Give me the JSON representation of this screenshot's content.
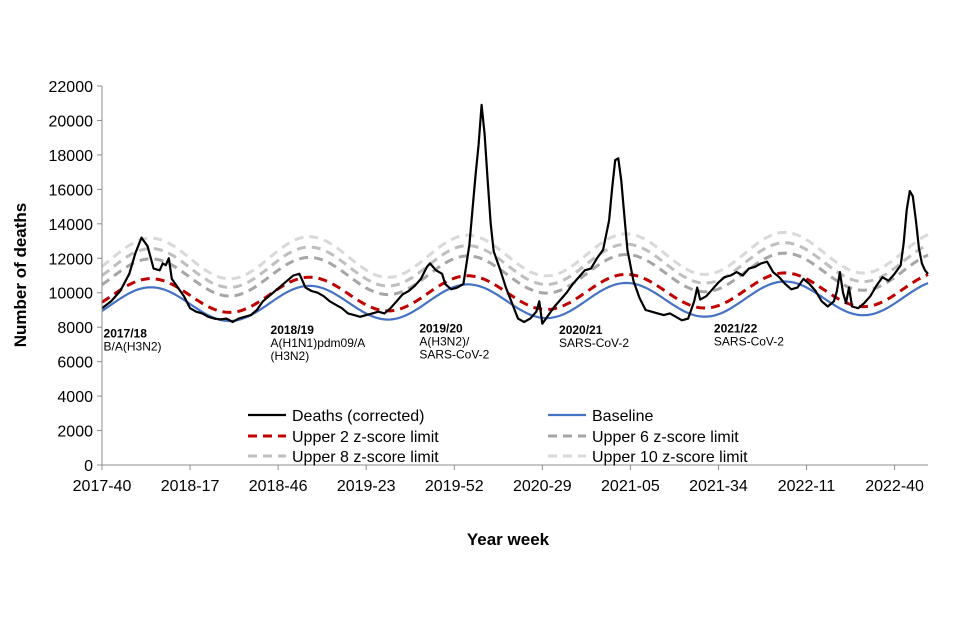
{
  "chart_data": {
    "type": "line",
    "xlabel": "Year week",
    "ylabel": "Number of deaths",
    "ylim": [
      0,
      22000
    ],
    "yticks": [
      0,
      2000,
      4000,
      6000,
      8000,
      10000,
      12000,
      14000,
      16000,
      18000,
      20000,
      22000
    ],
    "xlim": [
      0,
      272
    ],
    "xticks": [
      {
        "label": "2017-40",
        "week": 0
      },
      {
        "label": "2018-17",
        "week": 29
      },
      {
        "label": "2018-46",
        "week": 58
      },
      {
        "label": "2019-23",
        "week": 87
      },
      {
        "label": "2019-52",
        "week": 116
      },
      {
        "label": "2020-29",
        "week": 145
      },
      {
        "label": "2021-05",
        "week": 174
      },
      {
        "label": "2021-34",
        "week": 203
      },
      {
        "label": "2022-11",
        "week": 232
      },
      {
        "label": "2022-40",
        "week": 261
      }
    ],
    "series": [
      {
        "name": "Deaths (corrected)",
        "color": "#000000",
        "style": "solid",
        "points": [
          [
            0,
            9100
          ],
          [
            3,
            9500
          ],
          [
            6,
            10100
          ],
          [
            9,
            11100
          ],
          [
            11,
            12300
          ],
          [
            13,
            13200
          ],
          [
            15,
            12700
          ],
          [
            17,
            11400
          ],
          [
            19,
            11300
          ],
          [
            20,
            11700
          ],
          [
            21,
            11600
          ],
          [
            22,
            12000
          ],
          [
            23,
            10800
          ],
          [
            25,
            10300
          ],
          [
            27,
            9800
          ],
          [
            29,
            9100
          ],
          [
            31,
            8900
          ],
          [
            33,
            8800
          ],
          [
            35,
            8600
          ],
          [
            37,
            8500
          ],
          [
            39,
            8450
          ],
          [
            41,
            8500
          ],
          [
            43,
            8300
          ],
          [
            45,
            8500
          ],
          [
            47,
            8600
          ],
          [
            49,
            8700
          ],
          [
            51,
            9000
          ],
          [
            53,
            9500
          ],
          [
            55,
            9800
          ],
          [
            57,
            10100
          ],
          [
            59,
            10400
          ],
          [
            61,
            10700
          ],
          [
            63,
            11000
          ],
          [
            65,
            11100
          ],
          [
            67,
            10300
          ],
          [
            69,
            10100
          ],
          [
            71,
            10000
          ],
          [
            73,
            9800
          ],
          [
            75,
            9500
          ],
          [
            77,
            9300
          ],
          [
            79,
            9100
          ],
          [
            81,
            8800
          ],
          [
            83,
            8700
          ],
          [
            85,
            8600
          ],
          [
            87,
            8700
          ],
          [
            89,
            8800
          ],
          [
            91,
            8900
          ],
          [
            93,
            8800
          ],
          [
            95,
            9100
          ],
          [
            97,
            9500
          ],
          [
            99,
            9900
          ],
          [
            101,
            10100
          ],
          [
            103,
            10400
          ],
          [
            105,
            10800
          ],
          [
            107,
            11500
          ],
          [
            108,
            11700
          ],
          [
            110,
            11300
          ],
          [
            112,
            11100
          ],
          [
            113,
            10500
          ],
          [
            115,
            10200
          ],
          [
            117,
            10300
          ],
          [
            119,
            10500
          ],
          [
            121,
            12800
          ],
          [
            123,
            16800
          ],
          [
            124,
            18600
          ],
          [
            125,
            20900
          ],
          [
            126,
            19200
          ],
          [
            127,
            16500
          ],
          [
            128,
            14000
          ],
          [
            129,
            12400
          ],
          [
            131,
            11400
          ],
          [
            133,
            10300
          ],
          [
            135,
            9400
          ],
          [
            137,
            8500
          ],
          [
            139,
            8300
          ],
          [
            141,
            8500
          ],
          [
            143,
            8900
          ],
          [
            144,
            9500
          ],
          [
            145,
            8200
          ],
          [
            147,
            8700
          ],
          [
            149,
            9200
          ],
          [
            151,
            9600
          ],
          [
            153,
            10000
          ],
          [
            155,
            10500
          ],
          [
            157,
            10900
          ],
          [
            159,
            11300
          ],
          [
            161,
            11400
          ],
          [
            163,
            12000
          ],
          [
            165,
            12500
          ],
          [
            167,
            14200
          ],
          [
            168,
            16100
          ],
          [
            169,
            17700
          ],
          [
            170,
            17800
          ],
          [
            171,
            16500
          ],
          [
            172,
            14500
          ],
          [
            173,
            12500
          ],
          [
            175,
            10700
          ],
          [
            177,
            9700
          ],
          [
            179,
            9000
          ],
          [
            181,
            8900
          ],
          [
            183,
            8800
          ],
          [
            185,
            8700
          ],
          [
            187,
            8800
          ],
          [
            189,
            8600
          ],
          [
            191,
            8400
          ],
          [
            193,
            8500
          ],
          [
            195,
            9500
          ],
          [
            196,
            10300
          ],
          [
            197,
            9600
          ],
          [
            199,
            9800
          ],
          [
            201,
            10200
          ],
          [
            203,
            10600
          ],
          [
            205,
            10900
          ],
          [
            207,
            11000
          ],
          [
            209,
            11200
          ],
          [
            211,
            11000
          ],
          [
            213,
            11400
          ],
          [
            215,
            11500
          ],
          [
            217,
            11700
          ],
          [
            219,
            11800
          ],
          [
            221,
            11200
          ],
          [
            223,
            10900
          ],
          [
            225,
            10500
          ],
          [
            227,
            10200
          ],
          [
            229,
            10300
          ],
          [
            231,
            10800
          ],
          [
            233,
            10500
          ],
          [
            235,
            10100
          ],
          [
            237,
            9500
          ],
          [
            239,
            9200
          ],
          [
            241,
            9500
          ],
          [
            242,
            10100
          ],
          [
            243,
            11200
          ],
          [
            244,
            10000
          ],
          [
            245,
            9400
          ],
          [
            246,
            10300
          ],
          [
            247,
            9200
          ],
          [
            249,
            9100
          ],
          [
            251,
            9400
          ],
          [
            253,
            9800
          ],
          [
            255,
            10400
          ],
          [
            257,
            10900
          ],
          [
            259,
            10700
          ],
          [
            261,
            11100
          ],
          [
            263,
            11600
          ],
          [
            264,
            12900
          ],
          [
            265,
            14800
          ],
          [
            266,
            15900
          ],
          [
            267,
            15600
          ],
          [
            268,
            14200
          ],
          [
            269,
            12600
          ],
          [
            270,
            11700
          ],
          [
            271,
            11300
          ],
          [
            272,
            11100
          ]
        ]
      },
      {
        "name": "Baseline",
        "color": "#4472C4",
        "style": "solid",
        "mean": 9500,
        "amp": 1000,
        "peak_week": 16,
        "period": 52.18,
        "trend_per_week": 1.6
      },
      {
        "name": "Upper 2 z-score limit",
        "color": "#C00000",
        "style": "dashed",
        "mean": 10000,
        "amp": 1000,
        "peak_week": 16,
        "period": 52.18,
        "trend_per_week": 1.6
      },
      {
        "name": "Upper 6 z-score limit",
        "color": "#A6A6A6",
        "style": "dashed",
        "mean": 11050,
        "amp": 1100,
        "peak_week": 16,
        "period": 52.18,
        "trend_per_week": 1.6
      },
      {
        "name": "Upper 8 z-score limit",
        "color": "#BFBFBF",
        "style": "dashed",
        "mean": 11600,
        "amp": 1150,
        "peak_week": 16,
        "period": 52.18,
        "trend_per_week": 1.6
      },
      {
        "name": "Upper 10 z-score limit",
        "color": "#D9D9D9",
        "style": "dashed",
        "mean": 12150,
        "amp": 1200,
        "peak_week": 16,
        "period": 52.18,
        "trend_per_week": 1.6
      }
    ],
    "annotations": [
      {
        "season": "2017/18",
        "lines": [
          "B/A(H3N2)"
        ],
        "week": 0.5,
        "value": 7400
      },
      {
        "season": "2018/19",
        "lines": [
          "A(H1N1)pdm09/A",
          "(H3N2)"
        ],
        "week": 55.5,
        "value": 7600
      },
      {
        "season": "2019/20",
        "lines": [
          "A(H3N2)/",
          "SARS-CoV-2"
        ],
        "week": 104.5,
        "value": 7700
      },
      {
        "season": "2020/21",
        "lines": [
          "SARS-CoV-2"
        ],
        "week": 150.5,
        "value": 7600
      },
      {
        "season": "2021/22",
        "lines": [
          "SARS-CoV-2"
        ],
        "week": 201.5,
        "value": 7700
      }
    ],
    "legend": "bottom-inside"
  }
}
